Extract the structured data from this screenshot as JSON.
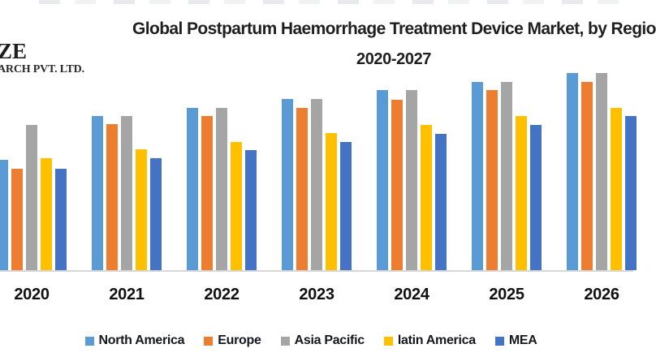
{
  "logo": {
    "line1": "ZE",
    "line2": "ARCH PVT. LTD."
  },
  "title": {
    "line1": "Global Postpartum Haemorrhage Treatment Device Market, by Regio",
    "line2": "2020-2027"
  },
  "chart_data": {
    "type": "bar",
    "title": "Global Postpartum Haemorrhage Treatment Device Market, by Regio 2020-2027",
    "categories": [
      "2020",
      "2021",
      "2022",
      "2023",
      "2024",
      "2025",
      "2026"
    ],
    "series": [
      {
        "name": "North America",
        "color": "#5B9BD5",
        "values": [
          136,
          190,
          200,
          211,
          222,
          232,
          243
        ]
      },
      {
        "name": "Europe",
        "color": "#ED7D31",
        "values": [
          125,
          180,
          190,
          200,
          210,
          222,
          232
        ]
      },
      {
        "name": "Asia Pacific",
        "color": "#A5A5A5",
        "values": [
          179,
          190,
          200,
          211,
          222,
          232,
          243
        ]
      },
      {
        "name": "latin America",
        "color": "#FFC000",
        "values": [
          138,
          149,
          158,
          169,
          179,
          190,
          200
        ]
      },
      {
        "name": "MEA",
        "color": "#4472C4",
        "values": [
          125,
          138,
          148,
          158,
          168,
          179,
          190
        ]
      }
    ],
    "value_axis": {
      "visible": false,
      "ylim": [
        0,
        260
      ],
      "unit": "relative-pixels"
    },
    "grid": false,
    "legend_position": "bottom",
    "x_axis_line_color": "#d8d8d8",
    "notes": "No value axis shown; series values are bar heights in screenshot pixels. Last group (2027) and right end of title are cropped out of view; 2026 MEA bar partially clipped at right edge; first 2020 North America bar clipped at left edge."
  }
}
